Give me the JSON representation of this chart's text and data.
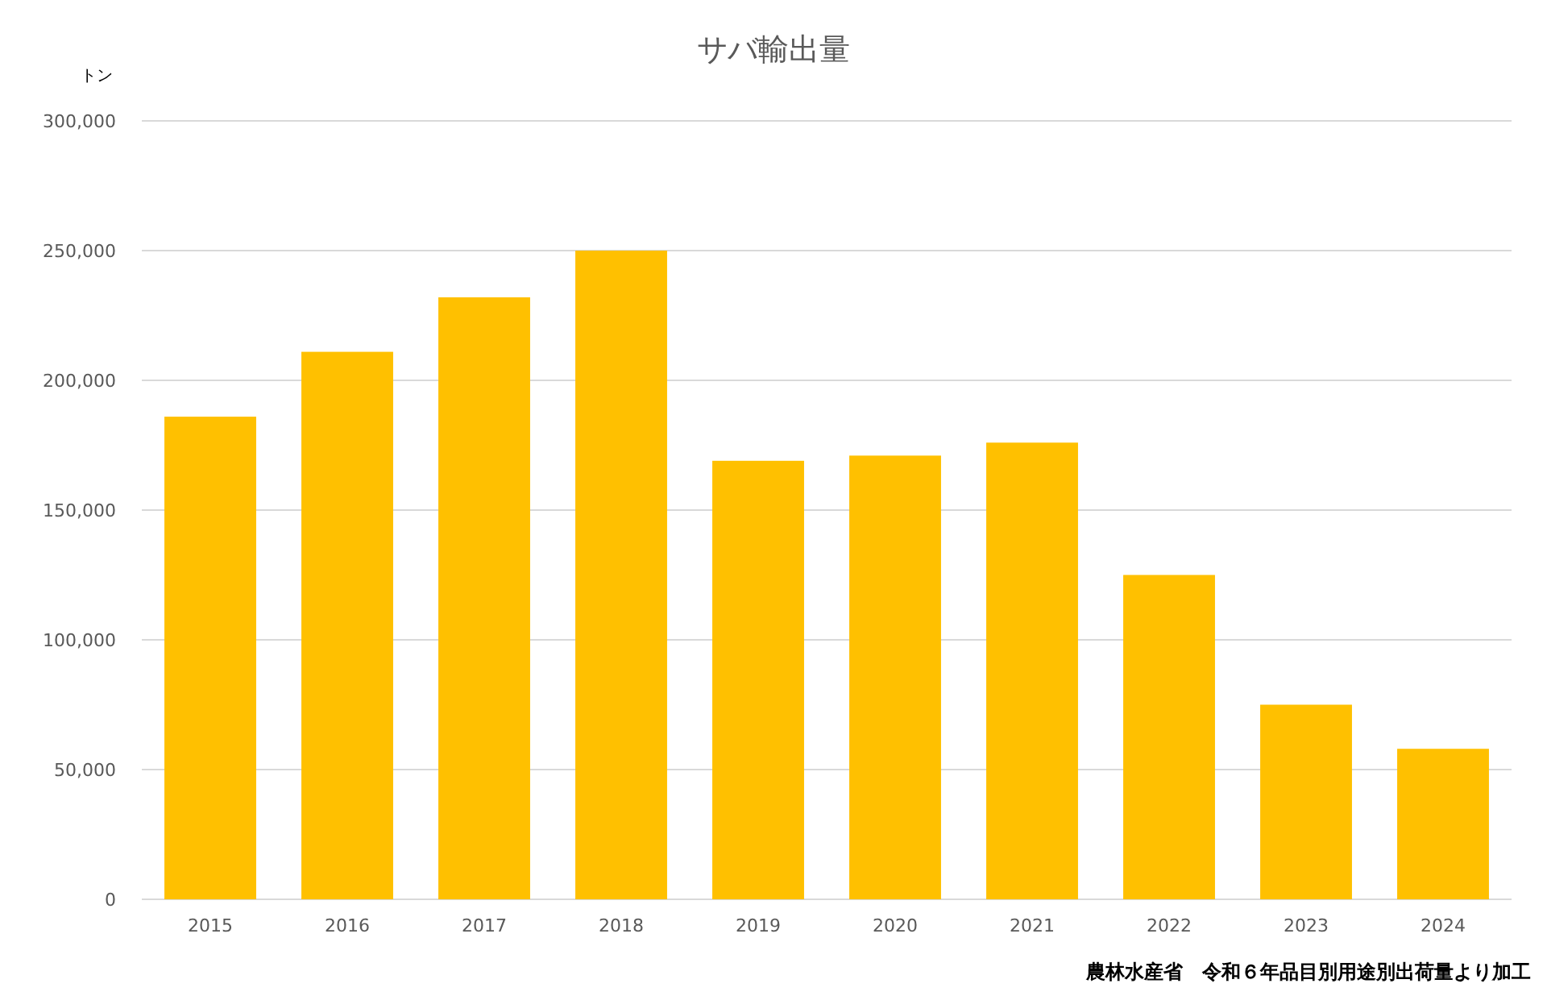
{
  "chart_data": {
    "type": "bar",
    "title": "サバ輸出量",
    "ylabel": "トン",
    "categories": [
      "2015",
      "2016",
      "2017",
      "2018",
      "2019",
      "2020",
      "2021",
      "2022",
      "2023",
      "2024"
    ],
    "values": [
      186000,
      211000,
      232000,
      250000,
      169000,
      171000,
      176000,
      125000,
      75000,
      58000
    ],
    "color": "#ffc000",
    "ylim": [
      0,
      300000
    ],
    "yticks": [
      {
        "value": 0,
        "label": "0"
      },
      {
        "value": 50000,
        "label": "50,000"
      },
      {
        "value": 100000,
        "label": "100,000"
      },
      {
        "value": 150000,
        "label": "150,000"
      },
      {
        "value": 200000,
        "label": "200,000"
      },
      {
        "value": 250000,
        "label": "250,000"
      },
      {
        "value": 300000,
        "label": "300,000"
      }
    ],
    "grid": "y",
    "annotations": [
      "農林水産省　令和６年品目別用途別出荷量より加工"
    ]
  }
}
